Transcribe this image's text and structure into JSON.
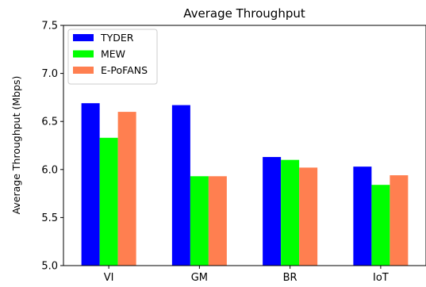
{
  "chart_data": {
    "type": "bar",
    "title": "Average Throughput",
    "xlabel": "",
    "ylabel": "Average Throughput (Mbps)",
    "categories": [
      "VI",
      "GM",
      "BR",
      "IoT"
    ],
    "series": [
      {
        "name": "TYDER",
        "color": "#0000ff",
        "values": [
          6.69,
          6.67,
          6.13,
          6.03
        ]
      },
      {
        "name": "MEW",
        "color": "#00ff00",
        "values": [
          6.33,
          5.93,
          6.1,
          5.84
        ]
      },
      {
        "name": "E-PoFANS",
        "color": "#ff7f50",
        "values": [
          6.6,
          5.93,
          6.02,
          5.94
        ]
      }
    ],
    "ylim": [
      5.0,
      7.5
    ],
    "yticks": [
      "5.0",
      "5.5",
      "6.0",
      "6.5",
      "7.0",
      "7.5"
    ],
    "grid": false,
    "legend_position": "top-left"
  }
}
